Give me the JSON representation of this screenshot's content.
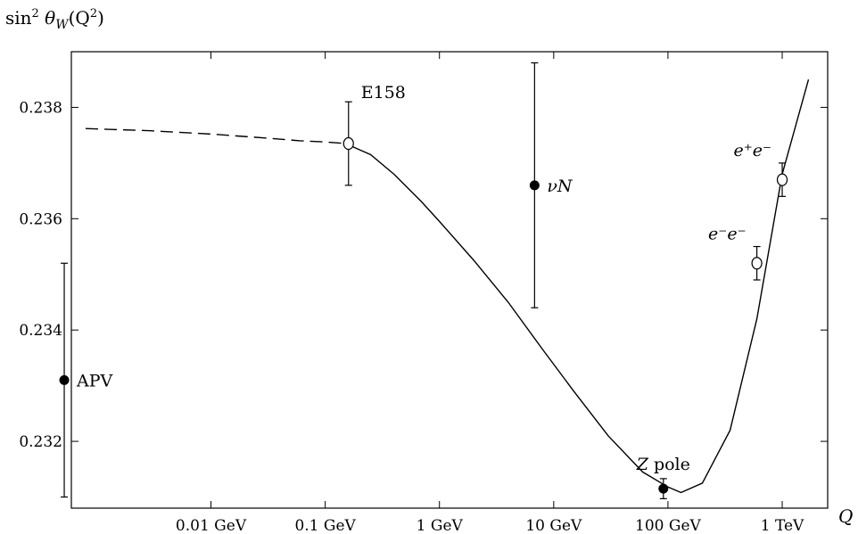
{
  "chart_data": {
    "type": "scatter",
    "title": "",
    "ylabel": {
      "base": "sin",
      "sup": "2",
      "theta": " θ",
      "sub": "W",
      "arg": "(Q",
      "argsup": "2",
      "close": ")"
    },
    "xlabel": "Q",
    "x_scale": "log",
    "x_unit": "GeV",
    "xlim": [
      0.0006,
      2500
    ],
    "ylim": [
      0.2308,
      0.239
    ],
    "grid": false,
    "x_ticks": [
      {
        "value": 0.01,
        "label": "0.01 GeV"
      },
      {
        "value": 0.1,
        "label": "0.1 GeV"
      },
      {
        "value": 1,
        "label": "1 GeV"
      },
      {
        "value": 10,
        "label": "10 GeV"
      },
      {
        "value": 100,
        "label": "100 GeV"
      },
      {
        "value": 1000,
        "label": "1 TeV"
      }
    ],
    "y_ticks": [
      {
        "value": 0.232,
        "label": "0.232"
      },
      {
        "value": 0.234,
        "label": "0.234"
      },
      {
        "value": 0.236,
        "label": "0.236"
      },
      {
        "value": 0.238,
        "label": "0.238"
      }
    ],
    "curve": {
      "dashed_until": 0.15,
      "points": [
        [
          0.0008,
          0.23762
        ],
        [
          0.003,
          0.23758
        ],
        [
          0.01,
          0.23752
        ],
        [
          0.03,
          0.23745
        ],
        [
          0.06,
          0.2374
        ],
        [
          0.1,
          0.23738
        ],
        [
          0.15,
          0.23735
        ],
        [
          0.25,
          0.23715
        ],
        [
          0.4,
          0.2368
        ],
        [
          0.7,
          0.2363
        ],
        [
          1,
          0.23595
        ],
        [
          2,
          0.23525
        ],
        [
          4,
          0.2345
        ],
        [
          8,
          0.23365
        ],
        [
          15,
          0.2329
        ],
        [
          30,
          0.2321
        ],
        [
          60,
          0.23145
        ],
        [
          100,
          0.23118
        ],
        [
          130,
          0.23108
        ],
        [
          200,
          0.23125
        ],
        [
          350,
          0.2322
        ],
        [
          600,
          0.2342
        ],
        [
          1000,
          0.2368
        ],
        [
          1700,
          0.2385
        ]
      ]
    },
    "points": [
      {
        "label": "APV",
        "x": 0.00052,
        "y": 0.2331,
        "err": 0.0021,
        "filled": true,
        "label_pos": "right"
      },
      {
        "label": "E158",
        "x": 0.16,
        "y": 0.23735,
        "err": 0.00075,
        "filled": false,
        "label_pos": "upper-right"
      },
      {
        "label_italic": "ν",
        "label_italic2": "N",
        "x": 6.8,
        "y": 0.2366,
        "err": 0.0022,
        "filled": true,
        "label_pos": "right"
      },
      {
        "label_italic": "Z",
        "label": " pole",
        "x": 91.2,
        "y": 0.23115,
        "err": 0.00018,
        "filled": true,
        "label_pos": "above"
      },
      {
        "label_math": "e⁻e⁻",
        "x": 600,
        "y": 0.2352,
        "err": 0.0003,
        "filled": false,
        "label_pos": "upper-left"
      },
      {
        "label_math": "e⁺e⁻",
        "x": 1000,
        "y": 0.2367,
        "err": 0.0003,
        "filled": false,
        "label_pos": "upper-left"
      }
    ]
  }
}
